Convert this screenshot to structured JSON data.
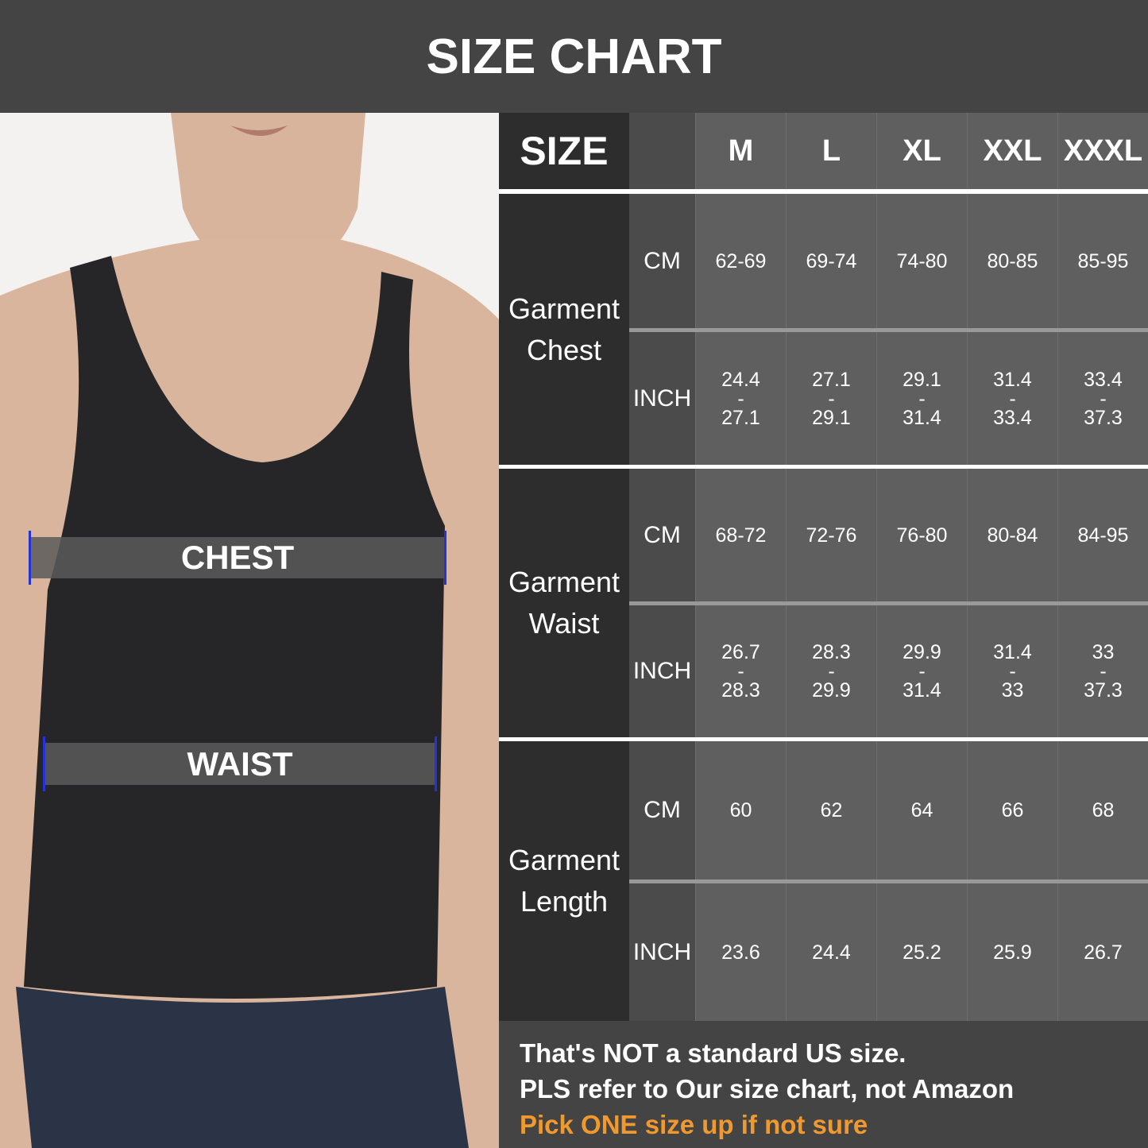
{
  "title": "SIZE CHART",
  "photo": {
    "chest_label": "CHEST",
    "waist_label": "WAIST",
    "marker_color": "#2233dd"
  },
  "table": {
    "size_header": "SIZE",
    "sizes": [
      "M",
      "L",
      "XL",
      "XXL",
      "XXXL"
    ],
    "sections": [
      {
        "label": [
          "Garment",
          "Chest"
        ],
        "rows": [
          {
            "unit": "CM",
            "values": [
              "62-69",
              "69-74",
              "74-80",
              "80-85",
              "85-95"
            ]
          },
          {
            "unit": "INCH",
            "values": [
              [
                "24.4",
                "-",
                "27.1"
              ],
              [
                "27.1",
                "-",
                "29.1"
              ],
              [
                "29.1",
                "-",
                "31.4"
              ],
              [
                "31.4",
                "-",
                "33.4"
              ],
              [
                "33.4",
                "-",
                "37.3"
              ]
            ]
          }
        ]
      },
      {
        "label": [
          "Garment",
          "Waist"
        ],
        "rows": [
          {
            "unit": "CM",
            "values": [
              "68-72",
              "72-76",
              "76-80",
              "80-84",
              "84-95"
            ]
          },
          {
            "unit": "INCH",
            "values": [
              [
                "26.7",
                "-",
                "28.3"
              ],
              [
                "28.3",
                "-",
                "29.9"
              ],
              [
                "29.9",
                "-",
                "31.4"
              ],
              [
                "31.4",
                "-",
                "33"
              ],
              [
                "33",
                "-",
                "37.3"
              ]
            ]
          }
        ]
      },
      {
        "label": [
          "Garment",
          "Length"
        ],
        "rows": [
          {
            "unit": "CM",
            "values": [
              "60",
              "62",
              "64",
              "66",
              "68"
            ]
          },
          {
            "unit": "INCH",
            "values": [
              "23.6",
              "24.4",
              "25.2",
              "25.9",
              "26.7"
            ]
          }
        ]
      }
    ]
  },
  "footer": {
    "line1": "That's NOT a standard US size.",
    "line2": "PLS refer to Our size chart, not Amazon",
    "line3": "Pick ONE size up if not sure",
    "highlight_color": "#f0992e"
  }
}
